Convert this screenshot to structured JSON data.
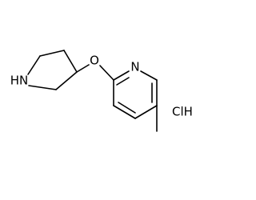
{
  "atoms": {
    "amine": "HN",
    "ether": "O",
    "pyridine": "N",
    "salt": "ClH"
  }
}
